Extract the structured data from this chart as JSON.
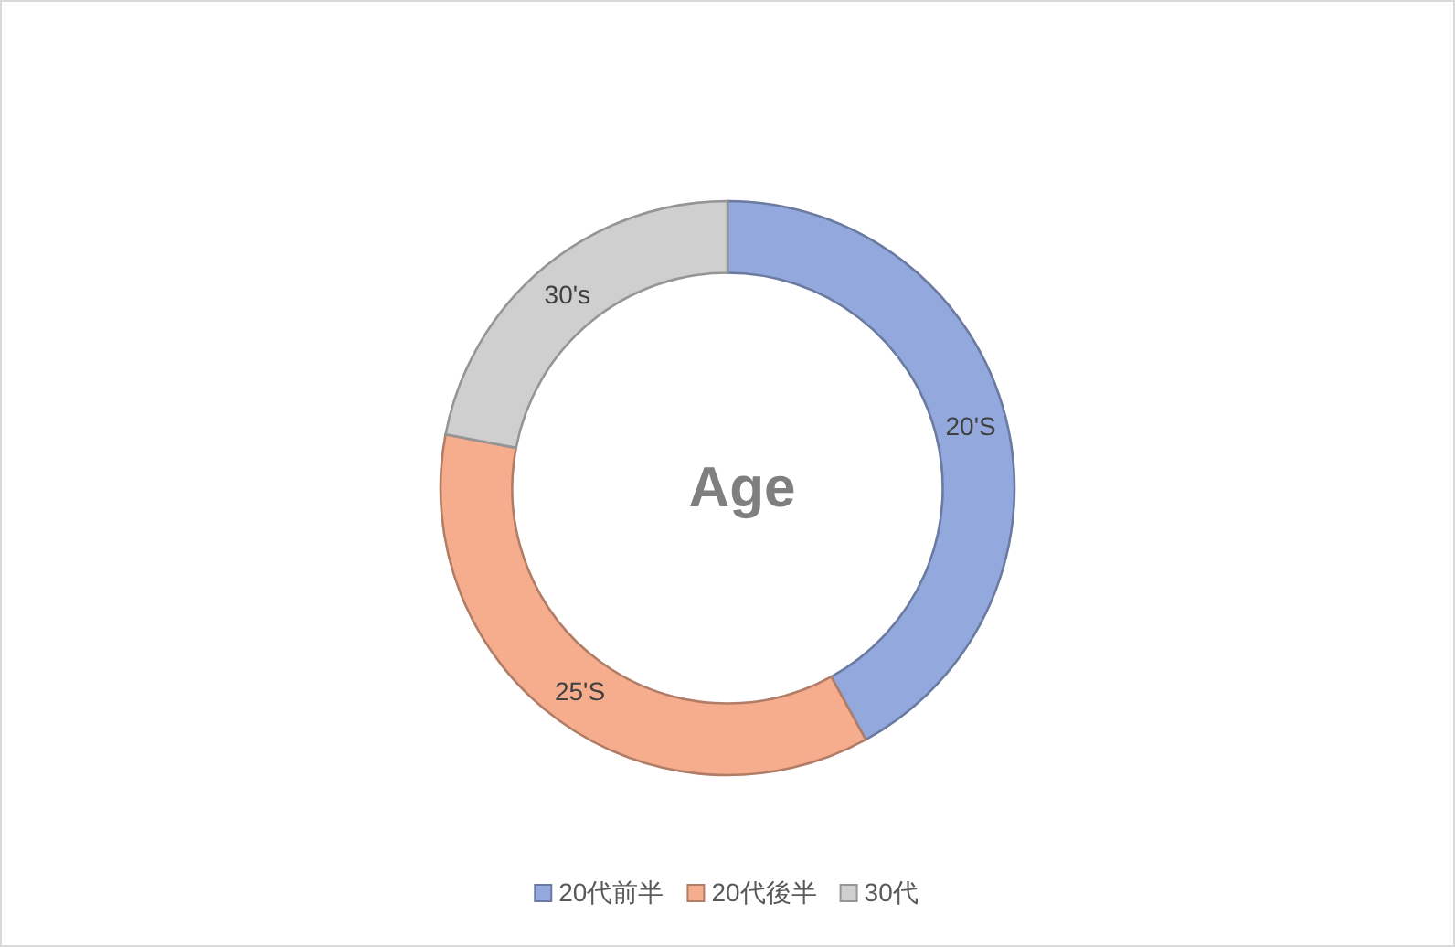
{
  "chart_data": {
    "type": "donut",
    "title": "Age",
    "categories": [
      "20代前半",
      "20代後半",
      "30代"
    ],
    "values": [
      42,
      36,
      22
    ],
    "colors": [
      "#93a9de",
      "#f6ad8d",
      "#cfcfcf"
    ],
    "annotations": [
      "20'S",
      "25'S",
      "30's"
    ],
    "legend": "bottom"
  }
}
